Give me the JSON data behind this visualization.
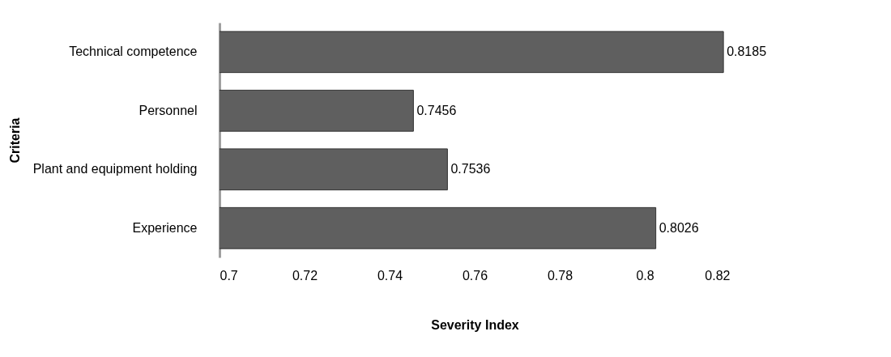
{
  "chart_data": {
    "type": "bar",
    "orientation": "horizontal",
    "categories": [
      "Technical competence",
      "Personnel",
      "Plant and equipment holding",
      "Experience"
    ],
    "values": [
      0.8185,
      0.7456,
      0.7536,
      0.8026
    ],
    "color": "#5f5f5f",
    "xlim": [
      0.7,
      0.82
    ],
    "xticks": [
      0.7,
      0.72,
      0.74,
      0.76,
      0.78,
      0.8,
      0.82
    ],
    "xlabel": "Severity Index",
    "ylabel": "Criteria",
    "data_labels": true
  }
}
